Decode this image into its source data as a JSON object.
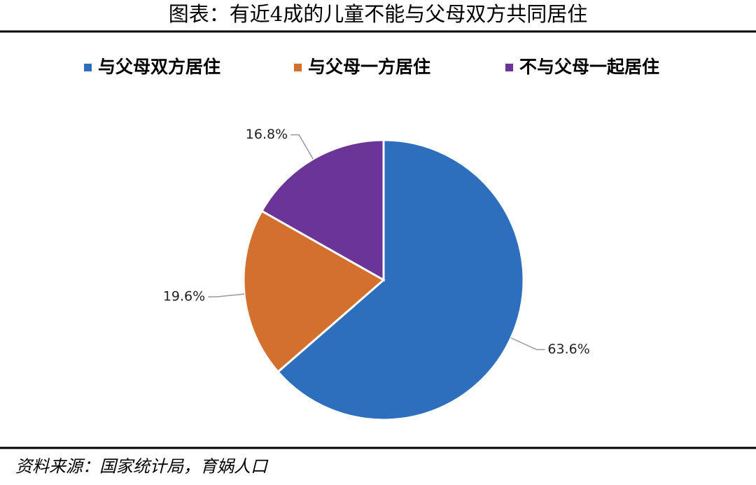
{
  "chart_data": {
    "type": "pie",
    "title": "图表：有近4成的儿童不能与父母双方共同居住",
    "categories": [
      "与父母双方居住",
      "与父母一方居住",
      "不与父母一起居住"
    ],
    "values": [
      63.6,
      19.6,
      16.8
    ],
    "value_labels": [
      "63.6%",
      "19.6%",
      "16.8%"
    ],
    "colors": [
      "#2e6fbd",
      "#d4702e",
      "#6a3597"
    ],
    "legend": "top",
    "source": "资料来源：国家统计局，育娲人口"
  }
}
